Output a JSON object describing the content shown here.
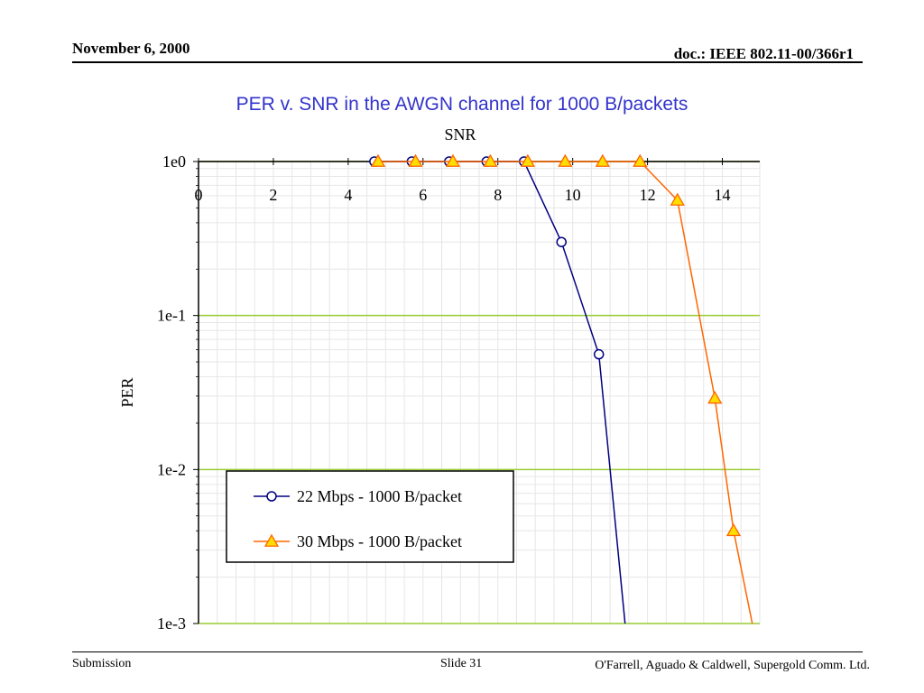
{
  "header": {
    "date": "November 6, 2000",
    "doc": "doc.: IEEE 802.11-00/366r1"
  },
  "slide_title": "PER v. SNR in the AWGN channel for 1000 B/packets",
  "footer": {
    "submission": "Submission",
    "slide": "Slide 31",
    "authors": "O'Farrell, Aguado & Caldwell, Supergold Comm. Ltd."
  },
  "chart_data": {
    "type": "line",
    "xlabel": "SNR",
    "ylabel": "PER",
    "x_ticks": [
      0,
      2,
      4,
      6,
      8,
      10,
      12,
      14
    ],
    "xlim": [
      0,
      15
    ],
    "y_ticks": [
      1,
      0.1,
      0.01,
      0.001
    ],
    "y_tick_labels": [
      "1e0",
      "1e-1",
      "1e-2",
      "1e-3"
    ],
    "ylim": [
      0.001,
      1
    ],
    "y_scale": "log",
    "x_axis_position": "top",
    "grid": true,
    "legend_position": "bottom-left",
    "series": [
      {
        "name": "22 Mbps - 1000 B/packet",
        "color": "#000080",
        "marker": "circle",
        "x": [
          4.7,
          5.7,
          6.7,
          7.7,
          8.7,
          9.7,
          10.7,
          11.4
        ],
        "y": [
          1,
          1,
          1,
          1,
          1,
          0.3,
          0.056,
          0.001
        ]
      },
      {
        "name": "30 Mbps - 1000 B/packet",
        "color": "#ff6600",
        "marker": "triangle",
        "x": [
          4.8,
          5.8,
          6.8,
          7.8,
          8.8,
          9.8,
          10.8,
          11.8,
          12.8,
          13.8,
          14.3,
          14.8
        ],
        "y": [
          1,
          1,
          1,
          1,
          1,
          1,
          1,
          1,
          0.56,
          0.029,
          0.004,
          0.001
        ]
      }
    ]
  }
}
